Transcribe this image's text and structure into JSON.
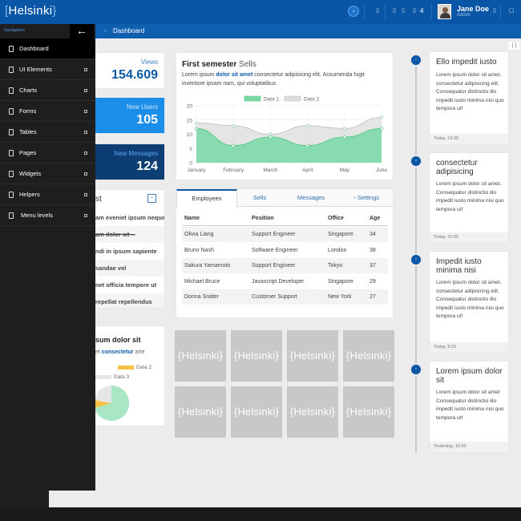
{
  "header": {
    "logo_text": "Helsinki",
    "logo_open": "[",
    "logo_close": "}",
    "badge_count": "4",
    "user_name": "Jane Doe",
    "user_role": "Admin",
    "page_title": "Dashboard",
    "corner_button": "{ }"
  },
  "sidebar": {
    "heading": "Navigation",
    "back_icon": "←",
    "items": [
      {
        "label": "Dashboard",
        "active": true
      },
      {
        "label": "UI Elements"
      },
      {
        "label": "Charts"
      },
      {
        "label": "Forms"
      },
      {
        "label": "Tables"
      },
      {
        "label": "Pages"
      },
      {
        "label": "Widgets"
      },
      {
        "label": "Helpers"
      },
      {
        "label": "Menu levels"
      }
    ]
  },
  "stats": {
    "views_label": "Views",
    "views_value": "154.609",
    "users_label": "New Users",
    "users_value": "105",
    "messages_label": "New Messages",
    "messages_value": "124"
  },
  "list_card": {
    "title": "st",
    "items": [
      "am eveniet ipsum neque",
      "am dolor sit --",
      "ndi in ipsum sapiente",
      "sandae vel",
      "net officia tempore ut",
      "repellat repellendus"
    ]
  },
  "pie_card": {
    "title": "sum dolor sit",
    "subtitle_pre": "et ",
    "subtitle_hl": "consectetur",
    "subtitle_post": " arte",
    "legend": [
      {
        "name": "Data 2",
        "color": "#f6c244"
      },
      {
        "name": "Data 3",
        "color": "#e6e6e6"
      }
    ]
  },
  "chart_card": {
    "title_bold": "First semester",
    "title_rest": "Sells",
    "desc_pre": "Lorem ipsum ",
    "desc_hl": "dolor sit amet",
    "desc_post": " consectetur adipisicing elit. Assumenda fugit inventore ipsam nam, qui voluptatibus"
  },
  "chart_data": {
    "type": "area",
    "categories": [
      "January",
      "February",
      "March",
      "April",
      "May",
      "June"
    ],
    "series": [
      {
        "name": "Data 1",
        "color": "#78d9a4",
        "values": [
          12,
          6,
          9,
          6,
          9,
          12
        ]
      },
      {
        "name": "Data 2",
        "color": "#dcdcdc",
        "values": [
          14,
          13,
          10,
          13,
          12,
          16
        ]
      }
    ],
    "ylim": [
      0,
      20
    ],
    "yticks": [
      "0",
      "5",
      "10",
      "15",
      "20"
    ],
    "grid": true,
    "legend": "top-center"
  },
  "table_card": {
    "tabs": [
      "Employees",
      "Sells",
      "Messages",
      "Settings"
    ],
    "settings_icon": "▫",
    "headers": [
      "Name",
      "Position",
      "Office",
      "Age"
    ],
    "rows": [
      [
        "Olivia Liang",
        "Support Engineer",
        "Singapore",
        "34"
      ],
      [
        "Bruno Nash",
        "Software Engineer",
        "London",
        "38"
      ],
      [
        "Sakura Yamamoto",
        "Support Engineer",
        "Tokyo",
        "37"
      ],
      [
        "Michael Bruce",
        "Javascript Developer",
        "Singapore",
        "29"
      ],
      [
        "Donna Snider",
        "Customer Support",
        "New York",
        "27"
      ]
    ]
  },
  "tiles": {
    "label": "Helsinki",
    "open": "{",
    "close": "}"
  },
  "timeline": [
    {
      "title": "Ello impedit iusto",
      "body": "Lorem ipsum dolor sit amet, consectetur adipisicing elit. Consequatur distinctio illo impedit iusto minima nisi quo tempora ut!",
      "time": "Today, 14:25"
    },
    {
      "title": "consectetur adipisicing",
      "body": "Lorem ipsum dolor sit amet. Consequatur distinctio illo impedit iusto minima nisi quo tempora ut!",
      "time": "Today, 10:55"
    },
    {
      "title": "Impedit iusto minima nisi",
      "body": "Lorem ipsum dolor sit amet, consectetur adipisicing elit. Consequatur distinctio illo impedit iusto minima nisi quo tempora ut!",
      "time": "Today, 9:20"
    },
    {
      "title": "Lorem ipsum dolor sit",
      "body": "Lorem ipsum dolor sit amet Consequatur distinctio illo impedit iusto minima nisi quo tempora ut!",
      "time": "Yesterday, 16:30"
    }
  ]
}
